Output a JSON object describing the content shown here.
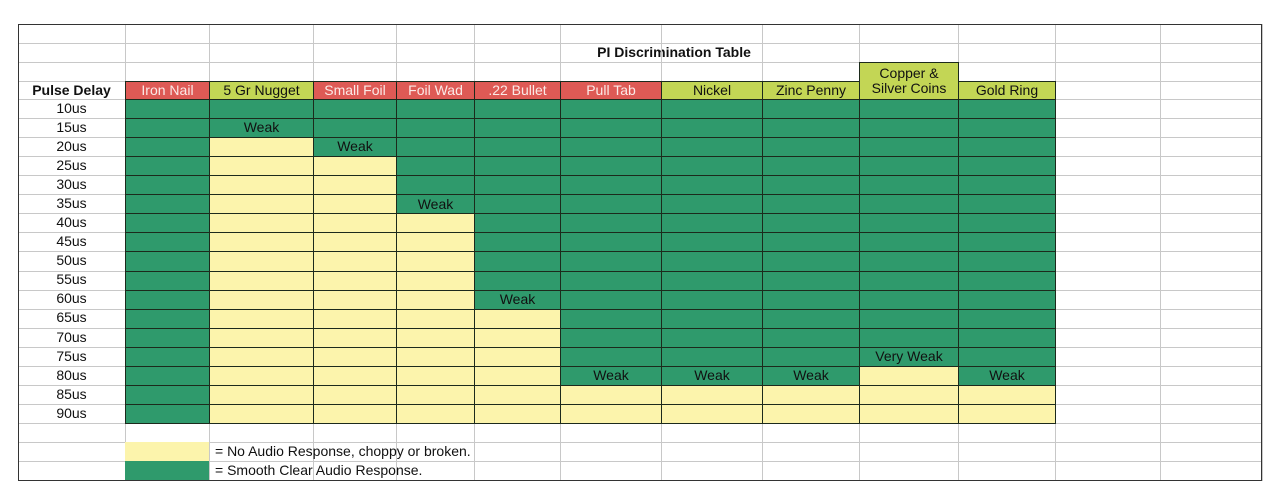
{
  "title": "PI Discrimination Table",
  "row_header": "Pulse Delay",
  "colors": {
    "ferrous_header": "#de5a55",
    "nonferrous_header": "#c3d655",
    "smooth": "#2f9a6c",
    "none": "#fcf4ac"
  },
  "columns": [
    {
      "label": "Iron Nail",
      "header_color": "red"
    },
    {
      "label": "5 Gr Nugget",
      "header_color": "lime"
    },
    {
      "label": "Small Foil",
      "header_color": "red"
    },
    {
      "label": "Foil Wad",
      "header_color": "red"
    },
    {
      "label": ".22 Bullet",
      "header_color": "red"
    },
    {
      "label": "Pull Tab",
      "header_color": "red"
    },
    {
      "label": "Nickel",
      "header_color": "lime"
    },
    {
      "label": "Zinc Penny",
      "header_color": "lime"
    },
    {
      "label": "Copper & Silver Coins",
      "line1": "Copper &",
      "line2": "Silver Coins",
      "header_color": "lime"
    },
    {
      "label": "Gold Ring",
      "header_color": "lime"
    }
  ],
  "rows": [
    {
      "delay": "10us",
      "cells": [
        "S",
        "S",
        "S",
        "S",
        "S",
        "S",
        "S",
        "S",
        "S",
        "S"
      ]
    },
    {
      "delay": "15us",
      "cells": [
        "S",
        "Weak",
        "S",
        "S",
        "S",
        "S",
        "S",
        "S",
        "S",
        "S"
      ]
    },
    {
      "delay": "20us",
      "cells": [
        "S",
        "N",
        "Weak",
        "S",
        "S",
        "S",
        "S",
        "S",
        "S",
        "S"
      ]
    },
    {
      "delay": "25us",
      "cells": [
        "S",
        "N",
        "N",
        "S",
        "S",
        "S",
        "S",
        "S",
        "S",
        "S"
      ]
    },
    {
      "delay": "30us",
      "cells": [
        "S",
        "N",
        "N",
        "S",
        "S",
        "S",
        "S",
        "S",
        "S",
        "S"
      ]
    },
    {
      "delay": "35us",
      "cells": [
        "S",
        "N",
        "N",
        "Weak",
        "S",
        "S",
        "S",
        "S",
        "S",
        "S"
      ]
    },
    {
      "delay": "40us",
      "cells": [
        "S",
        "N",
        "N",
        "N",
        "S",
        "S",
        "S",
        "S",
        "S",
        "S"
      ]
    },
    {
      "delay": "45us",
      "cells": [
        "S",
        "N",
        "N",
        "N",
        "S",
        "S",
        "S",
        "S",
        "S",
        "S"
      ]
    },
    {
      "delay": "50us",
      "cells": [
        "S",
        "N",
        "N",
        "N",
        "S",
        "S",
        "S",
        "S",
        "S",
        "S"
      ]
    },
    {
      "delay": "55us",
      "cells": [
        "S",
        "N",
        "N",
        "N",
        "S",
        "S",
        "S",
        "S",
        "S",
        "S"
      ]
    },
    {
      "delay": "60us",
      "cells": [
        "S",
        "N",
        "N",
        "N",
        "Weak",
        "S",
        "S",
        "S",
        "S",
        "S"
      ]
    },
    {
      "delay": "65us",
      "cells": [
        "S",
        "N",
        "N",
        "N",
        "N",
        "S",
        "S",
        "S",
        "S",
        "S"
      ]
    },
    {
      "delay": "70us",
      "cells": [
        "S",
        "N",
        "N",
        "N",
        "N",
        "S",
        "S",
        "S",
        "S",
        "S"
      ]
    },
    {
      "delay": "75us",
      "cells": [
        "S",
        "N",
        "N",
        "N",
        "N",
        "S",
        "S",
        "S",
        "Very Weak",
        "S"
      ]
    },
    {
      "delay": "80us",
      "cells": [
        "S",
        "N",
        "N",
        "N",
        "N",
        "Weak",
        "Weak",
        "Weak",
        "N",
        "Weak"
      ]
    },
    {
      "delay": "85us",
      "cells": [
        "S",
        "N",
        "N",
        "N",
        "N",
        "N",
        "N",
        "N",
        "N",
        "N"
      ]
    },
    {
      "delay": "90us",
      "cells": [
        "S",
        "N",
        "N",
        "N",
        "N",
        "N",
        "N",
        "N",
        "N",
        "N"
      ]
    }
  ],
  "legend": [
    {
      "key": "N",
      "text": "= No Audio Response, choppy or broken."
    },
    {
      "key": "S",
      "text": "= Smooth Clear Audio Response."
    }
  ]
}
